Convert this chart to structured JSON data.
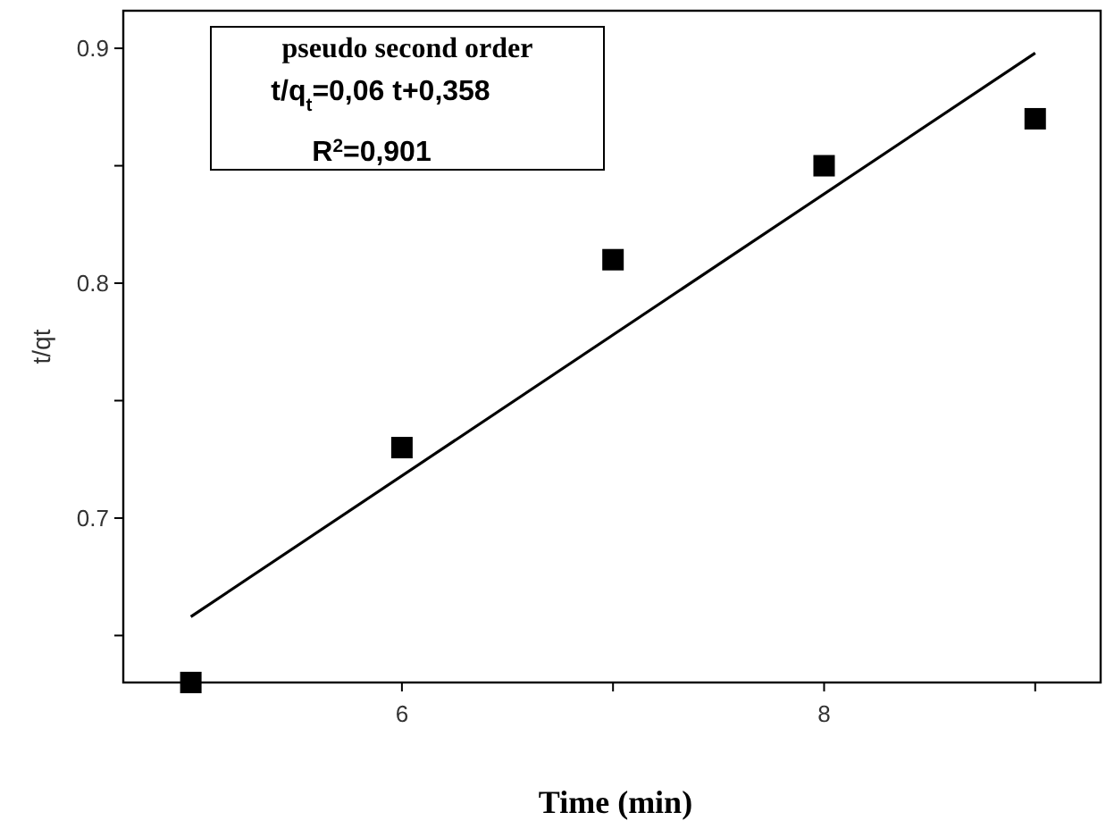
{
  "chart_data": {
    "type": "scatter",
    "xlabel": "Time (min)",
    "ylabel": "t/qt",
    "xlim": [
      4.68,
      9.31
    ],
    "ylim": [
      0.63,
      0.916
    ],
    "xticks": [
      {
        "value": 5,
        "label": null
      },
      6,
      {
        "value": 7,
        "label": null
      },
      8,
      {
        "value": 9,
        "label": null
      }
    ],
    "yticks": [
      {
        "value": 0.65,
        "label": null
      },
      0.7,
      {
        "value": 0.75,
        "label": null
      },
      0.8,
      {
        "value": 0.85,
        "label": null
      },
      0.9
    ],
    "grid": false,
    "series": [
      {
        "color": "#000000",
        "marker": "square",
        "x": [
          5,
          6,
          7,
          8,
          9
        ],
        "values": [
          0.63,
          0.73,
          0.81,
          0.85,
          0.87
        ]
      },
      {
        "type": "line",
        "color": "#000000",
        "marker": "none",
        "line_style": "solid",
        "x": [
          5,
          9
        ],
        "values": [
          0.658,
          0.898
        ]
      }
    ],
    "annotations": [
      "pseudo second order",
      "t/q$_{t}$=0,06 t+0,358",
      "R$^{2}$=0,901"
    ]
  }
}
